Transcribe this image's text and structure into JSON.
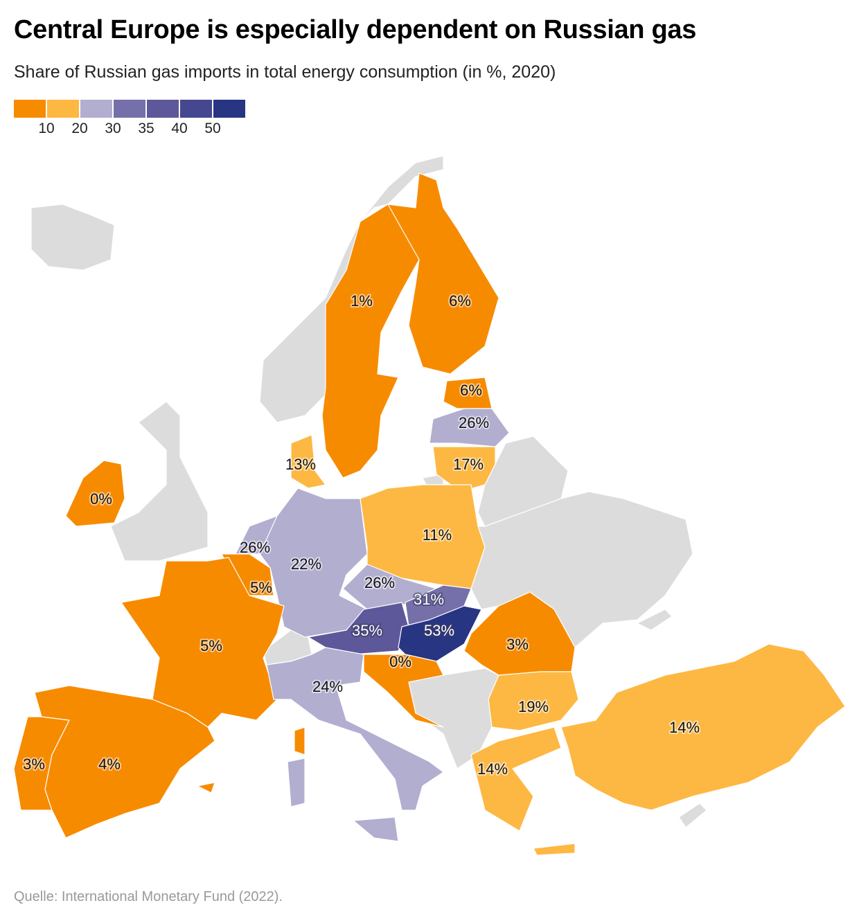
{
  "header": {
    "title": "Central Europe is especially dependent on Russian gas",
    "subtitle": "Share of Russian gas imports in total energy consumption (in %, 2020)"
  },
  "legend": {
    "colors": [
      "#f78b00",
      "#fdb843",
      "#b1aed0",
      "#7570a9",
      "#5c5899",
      "#454790",
      "#283583"
    ],
    "thresholds": [
      "10",
      "20",
      "30",
      "35",
      "40",
      "50"
    ],
    "no_data_color": "#dcdcdc"
  },
  "chart_data": {
    "type": "choropleth",
    "regions": [
      {
        "country": "Sweden",
        "value": 1,
        "label": "1%"
      },
      {
        "country": "Finland",
        "value": 6,
        "label": "6%"
      },
      {
        "country": "Estonia",
        "value": 6,
        "label": "6%"
      },
      {
        "country": "Latvia",
        "value": 26,
        "label": "26%"
      },
      {
        "country": "Lithuania",
        "value": 17,
        "label": "17%"
      },
      {
        "country": "Denmark",
        "value": 13,
        "label": "13%"
      },
      {
        "country": "Ireland",
        "value": 0,
        "label": "0%"
      },
      {
        "country": "Netherlands",
        "value": 26,
        "label": "26%"
      },
      {
        "country": "Germany",
        "value": 22,
        "label": "22%"
      },
      {
        "country": "Belgium",
        "value": 5,
        "label": "5%"
      },
      {
        "country": "France",
        "value": 5,
        "label": "5%"
      },
      {
        "country": "Poland",
        "value": 11,
        "label": "11%"
      },
      {
        "country": "Czechia",
        "value": 26,
        "label": "26%"
      },
      {
        "country": "Slovakia",
        "value": 31,
        "label": "31%"
      },
      {
        "country": "Austria",
        "value": 35,
        "label": "35%"
      },
      {
        "country": "Hungary",
        "value": 53,
        "label": "53%"
      },
      {
        "country": "Slovenia",
        "value": 0,
        "label": "0%"
      },
      {
        "country": "Italy",
        "value": 24,
        "label": "24%"
      },
      {
        "country": "Romania",
        "value": 3,
        "label": "3%"
      },
      {
        "country": "Bulgaria",
        "value": 19,
        "label": "19%"
      },
      {
        "country": "Greece",
        "value": 14,
        "label": "14%"
      },
      {
        "country": "Turkey",
        "value": 14,
        "label": "14%"
      },
      {
        "country": "Portugal",
        "value": 3,
        "label": "3%"
      },
      {
        "country": "Spain",
        "value": 4,
        "label": "4%"
      }
    ]
  },
  "footer": {
    "source": "Quelle: International Monetary Fund (2022)."
  }
}
